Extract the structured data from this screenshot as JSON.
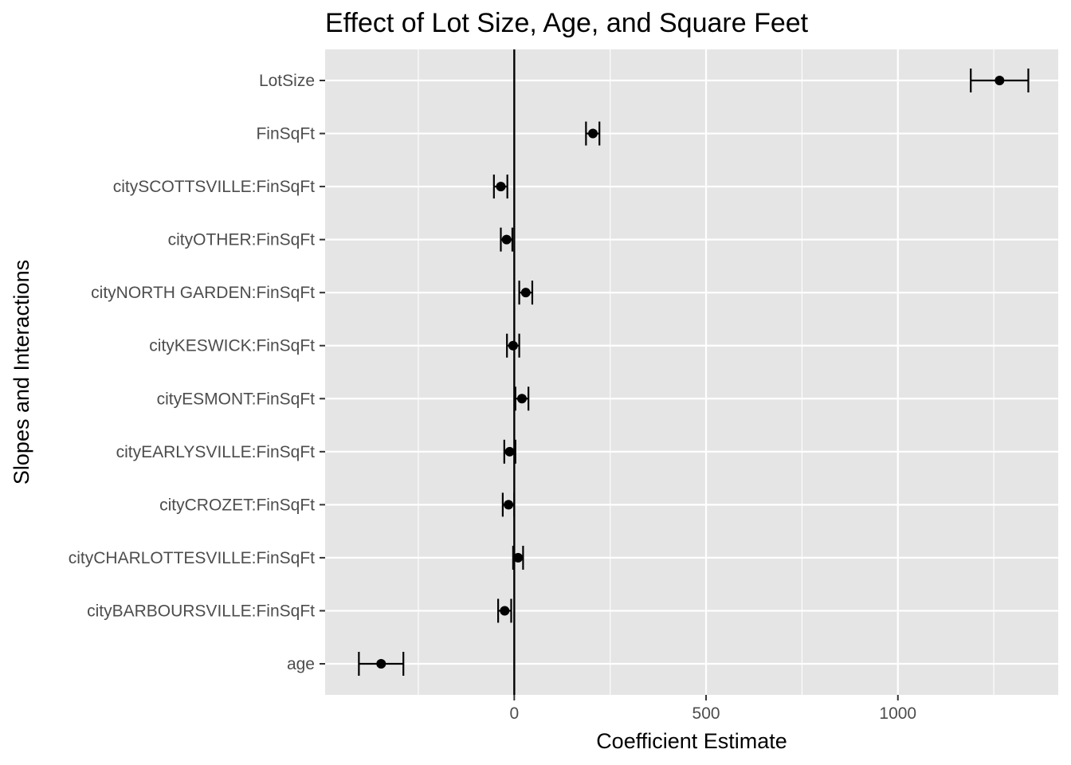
{
  "chart_data": {
    "type": "scatter",
    "subtype": "coefficient-plot-with-error-bars",
    "title": "Effect of Lot Size, Age, and Square Feet",
    "xlabel": "Coefficient Estimate",
    "ylabel": "Slopes and Interactions",
    "xlim": [
      -493,
      1418
    ],
    "x_ticks": [
      0,
      500,
      1000
    ],
    "reference_line_x": 0,
    "grid": true,
    "panel_background": "#e5e5e5",
    "grid_color": "#ffffff",
    "point_color": "#000000",
    "categories": [
      "LotSize",
      "FinSqFt",
      "citySCOTTSVILLE:FinSqFt",
      "cityOTHER:FinSqFt",
      "cityNORTH GARDEN:FinSqFt",
      "cityKESWICK:FinSqFt",
      "cityESMONT:FinSqFt",
      "cityEARLYSVILLE:FinSqFt",
      "cityCROZET:FinSqFt",
      "cityCHARLOTTESVILLE:FinSqFt",
      "cityBARBOURSVILLE:FinSqFt",
      "age"
    ],
    "estimates": [
      1265,
      205,
      -35,
      -20,
      30,
      -3,
      20,
      -12,
      -15,
      10,
      -25,
      -347
    ],
    "lower": [
      1190,
      187,
      -53,
      -35,
      13,
      -19,
      3,
      -26,
      -30,
      -3,
      -42,
      -405
    ],
    "upper": [
      1340,
      222,
      -18,
      -5,
      47,
      13,
      37,
      3,
      0,
      23,
      -8,
      -289
    ]
  }
}
